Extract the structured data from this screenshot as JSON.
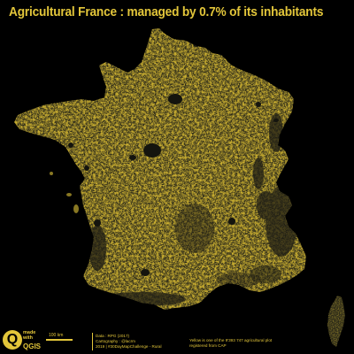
{
  "title": "Agricultural France :  managed by 0.7% of its inhabitants",
  "colors": {
    "background": "#000000",
    "plot_yellow": "#e3c63a",
    "territory_dark": "#2a2818",
    "urban_dark": "#1a1a14"
  },
  "logo": {
    "icon": "qgis-logo-icon",
    "made_with": "made with",
    "name": "QGIS"
  },
  "scale": {
    "label": "100 km"
  },
  "credits": {
    "line1": "Data : RPG (2017)",
    "line2": "Cartography : @lacrm",
    "line3": "2019 | #30DayMapChallenge - Rural"
  },
  "legend": {
    "line1": "Yellow is one of the 9'393 747 agricultural plot",
    "line2": "registered from CAP"
  }
}
